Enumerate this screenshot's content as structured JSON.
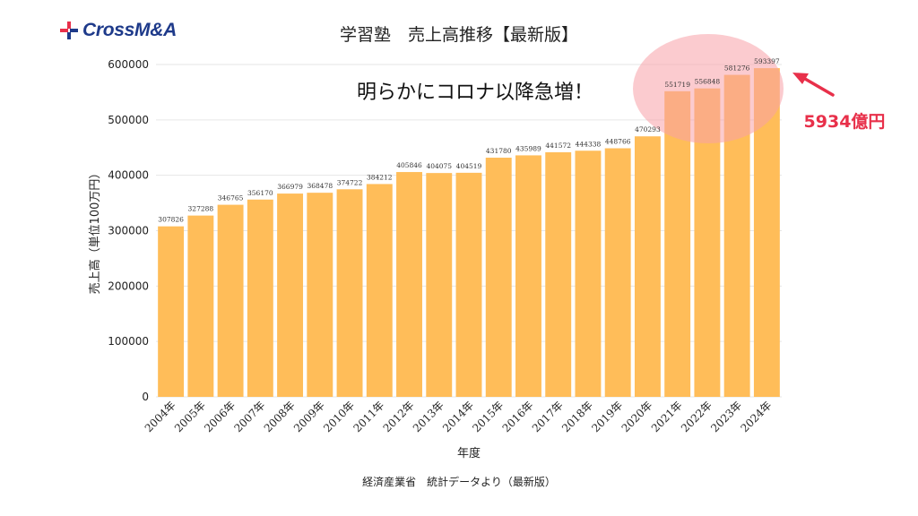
{
  "logo": {
    "text": "CrossM&A",
    "icon": "cross-plus-icon"
  },
  "chart_data": {
    "type": "bar",
    "title": "学習塾　売上高推移【最新版】",
    "xlabel": "年度",
    "ylabel": "売上高（単位100万円）",
    "ylim": [
      0,
      600000
    ],
    "yticks": [
      0,
      100000,
      200000,
      300000,
      400000,
      500000,
      600000
    ],
    "grid": true,
    "categories": [
      "2004年",
      "2005年",
      "2006年",
      "2007年",
      "2008年",
      "2009年",
      "2010年",
      "2011年",
      "2012年",
      "2013年",
      "2014年",
      "2015年",
      "2016年",
      "2017年",
      "2018年",
      "2019年",
      "2020年",
      "2021年",
      "2022年",
      "2023年",
      "2024年"
    ],
    "values": [
      307826,
      327288,
      346765,
      356170,
      366979,
      368478,
      374722,
      384212,
      405846,
      404075,
      404519,
      431780,
      435989,
      441572,
      444338,
      448766,
      470293,
      551719,
      556848,
      581276,
      593397
    ],
    "data_labels": [
      "307826",
      "327288",
      "346765",
      "356170",
      "366979",
      "368478",
      "374722",
      "384212",
      "405846",
      "404075",
      "404519",
      "431780",
      "435989",
      "441572",
      "444338",
      "448766",
      "470293",
      "551719",
      "556848",
      "581276",
      "593397"
    ],
    "annotations": {
      "headline": "明らかにコロナ以降急増！",
      "callout": "5934億円"
    }
  },
  "source": "経済産業省　統計データより（最新版）",
  "colors": {
    "bar": "#ffbd59",
    "highlight_bar": "#ffa449",
    "circle": "#f8a0a8",
    "arrow": "#e8304a",
    "callout": "#e8304a",
    "grid": "#e6e6e6",
    "logo_blue": "#1e3a8a",
    "logo_red": "#e8304a"
  }
}
